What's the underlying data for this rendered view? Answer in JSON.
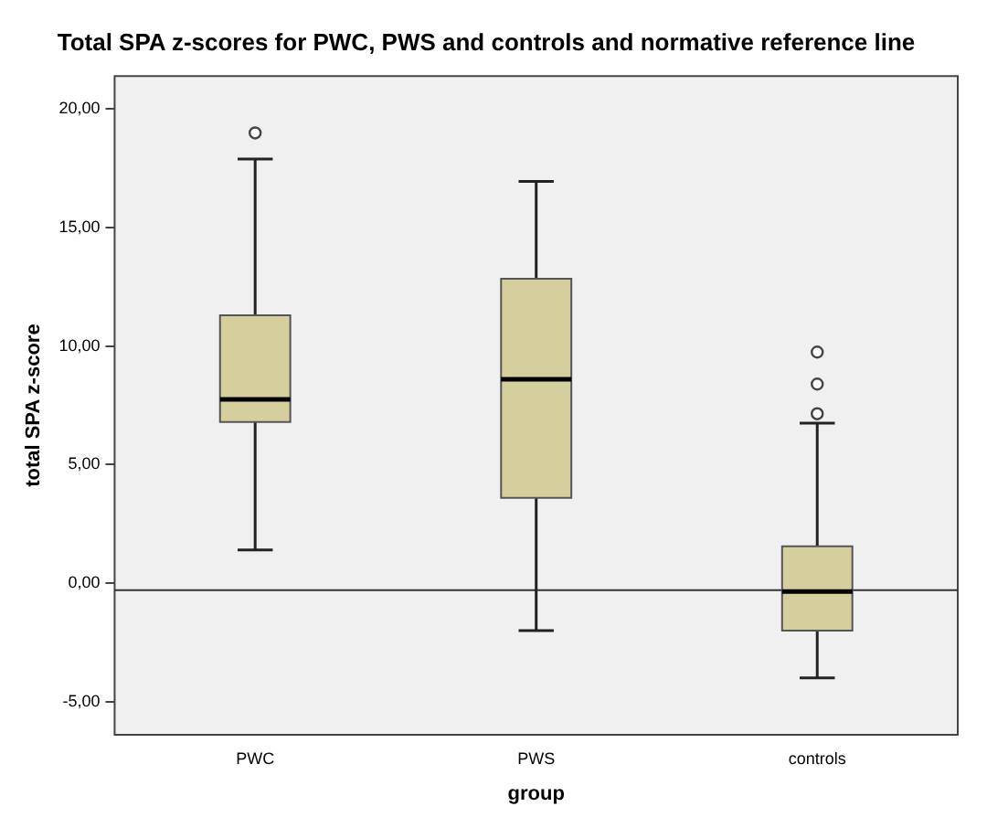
{
  "chart_data": {
    "type": "box",
    "title": "Total SPA z-scores for PWC, PWS and controls and normative reference line",
    "xlabel": "group",
    "ylabel": "total SPA z-score",
    "categories": [
      "PWC",
      "PWS",
      "controls"
    ],
    "boxes": [
      {
        "low": 1.4,
        "q1": 6.8,
        "median": 7.75,
        "q3": 11.3,
        "high": 17.9,
        "outliers": [
          19.0
        ]
      },
      {
        "low": -2.0,
        "q1": 3.6,
        "median": 8.6,
        "q3": 12.85,
        "high": 16.95
      },
      {
        "low": -4.0,
        "q1": -2.0,
        "median": -0.35,
        "q3": 1.55,
        "high": 6.75,
        "outliers": [
          7.15,
          8.4,
          9.75
        ]
      }
    ],
    "color": "#d4cf9c",
    "ylim": [
      -6.4,
      21.4
    ],
    "yticks": [
      {
        "value": -5,
        "label": "-5,00"
      },
      {
        "value": 0,
        "label": "0,00"
      },
      {
        "value": 5,
        "label": "5,00"
      },
      {
        "value": 10,
        "label": "10,00"
      },
      {
        "value": 15,
        "label": "15,00"
      },
      {
        "value": 20,
        "label": "20,00"
      }
    ],
    "ref_lines": [
      {
        "axis": "y",
        "value": -0.3,
        "color": "#333333"
      }
    ],
    "grid": false,
    "legend": false
  }
}
